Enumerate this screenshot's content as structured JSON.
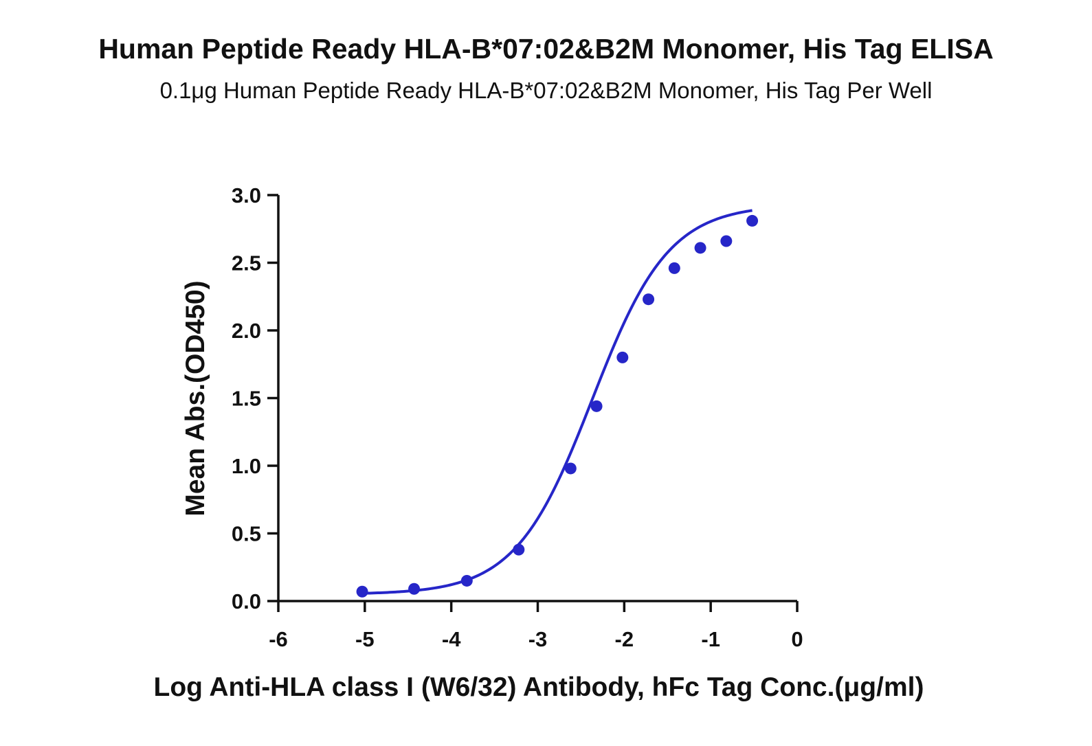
{
  "chart_data": {
    "type": "scatter",
    "title": "Human Peptide Ready HLA-B*07:02&B2M Monomer, His Tag ELISA",
    "subtitle": "0.1μg Human Peptide Ready HLA-B*07:02&B2M Monomer, His Tag Per Well",
    "xlabel": "Log Anti-HLA class I (W6/32) Antibody, hFc Tag Conc.(μg/ml)",
    "ylabel": "Mean Abs.(OD450)",
    "xlim": [
      -6,
      0
    ],
    "ylim": [
      0,
      3.0
    ],
    "xticks": [
      "-6",
      "-5",
      "-4",
      "-3",
      "-2",
      "-1",
      "0"
    ],
    "yticks": [
      "0.0",
      "0.5",
      "1.0",
      "1.5",
      "2.0",
      "2.5",
      "3.0"
    ],
    "grid": false,
    "series": [
      {
        "color": "#2626c8",
        "x": [
          -5.03,
          -4.43,
          -3.82,
          -3.22,
          -2.62,
          -2.32,
          -2.02,
          -1.72,
          -1.42,
          -1.12,
          -0.82,
          -0.52
        ],
        "y": [
          0.07,
          0.09,
          0.15,
          0.38,
          0.98,
          1.44,
          1.8,
          2.23,
          2.46,
          2.61,
          2.66,
          2.81
        ]
      }
    ],
    "fit_curve": {
      "color": "#2626c8",
      "bottom": 0.05,
      "top": 2.93,
      "log_ec50": -2.37,
      "hill_slope": 0.98
    }
  }
}
